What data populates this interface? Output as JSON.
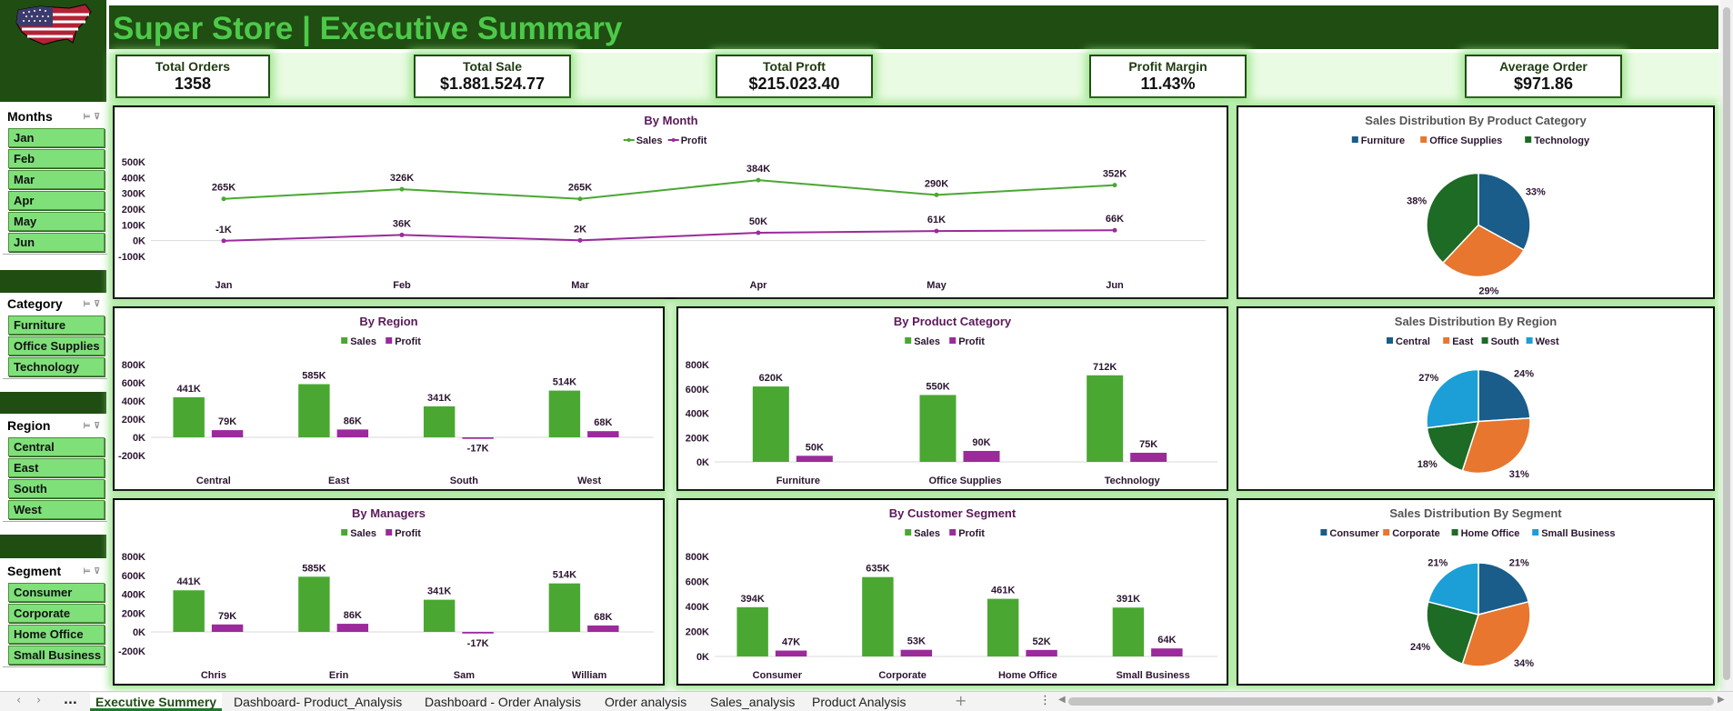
{
  "title": "Super Store | Executive Summary",
  "colors": {
    "sales": "#4aa832",
    "profit": "#9b2a9b",
    "dark_green": "#1f4d12",
    "furniture": "#1a5c8a",
    "office": "#e8762f",
    "technology": "#1d6b25",
    "small_business": "#1c9ed6"
  },
  "kpis": [
    {
      "label": "Total Orders",
      "value": "1358"
    },
    {
      "label": "Total Sale",
      "value": "$1.881.524.77"
    },
    {
      "label": "Total Proft",
      "value": "$215.023.40"
    },
    {
      "label": "Profit Margin",
      "value": "11.43%"
    },
    {
      "label": "Average Order",
      "value": "$971.86"
    }
  ],
  "slicers": {
    "months": {
      "title": "Months",
      "items": [
        "Jan",
        "Feb",
        "Mar",
        "Apr",
        "May",
        "Jun"
      ]
    },
    "category": {
      "title": "Category",
      "items": [
        "Furniture",
        "Office Supplies",
        "Technology"
      ]
    },
    "region": {
      "title": "Region",
      "items": [
        "Central",
        "East",
        "South",
        "West"
      ]
    },
    "segment": {
      "title": "Segment",
      "items": [
        "Consumer",
        "Corporate",
        "Home Office",
        "Small Business"
      ]
    }
  },
  "chart_data": [
    {
      "id": "by_month",
      "type": "line",
      "title": "By Month",
      "categories": [
        "Jan",
        "Feb",
        "Mar",
        "Apr",
        "May",
        "Jun"
      ],
      "series": [
        {
          "name": "Sales",
          "values": [
            265,
            326,
            265,
            384,
            290,
            352
          ],
          "labels": [
            "265K",
            "326K",
            "265K",
            "384K",
            "290K",
            "352K"
          ]
        },
        {
          "name": "Profit",
          "values": [
            -1,
            36,
            2,
            50,
            61,
            66
          ],
          "labels": [
            "-1K",
            "36K",
            "2K",
            "50K",
            "61K",
            "66K"
          ]
        }
      ],
      "yticks": [
        "500K",
        "400K",
        "300K",
        "200K",
        "100K",
        "0K",
        "-100K"
      ],
      "ylim": [
        -100,
        500
      ]
    },
    {
      "id": "by_region",
      "type": "bar",
      "title": "By Region",
      "categories": [
        "Central",
        "East",
        "South",
        "West"
      ],
      "series": [
        {
          "name": "Sales",
          "values": [
            441,
            585,
            341,
            514
          ],
          "labels": [
            "441K",
            "585K",
            "341K",
            "514K"
          ]
        },
        {
          "name": "Profit",
          "values": [
            79,
            86,
            -17,
            68
          ],
          "labels": [
            "79K",
            "86K",
            "-17K",
            "68K"
          ]
        }
      ],
      "yticks": [
        "800K",
        "600K",
        "400K",
        "200K",
        "0K",
        "-200K"
      ],
      "ylim": [
        -200,
        800
      ]
    },
    {
      "id": "by_product_category",
      "type": "bar",
      "title": "By Product Category",
      "categories": [
        "Furniture",
        "Office Supplies",
        "Technology"
      ],
      "series": [
        {
          "name": "Sales",
          "values": [
            620,
            550,
            712
          ],
          "labels": [
            "620K",
            "550K",
            "712K"
          ]
        },
        {
          "name": "Profit",
          "values": [
            50,
            90,
            75
          ],
          "labels": [
            "50K",
            "90K",
            "75K"
          ]
        }
      ],
      "yticks": [
        "800K",
        "600K",
        "400K",
        "200K",
        "0K"
      ],
      "ylim": [
        0,
        800
      ]
    },
    {
      "id": "by_managers",
      "type": "bar",
      "title": "By Managers",
      "categories": [
        "Chris",
        "Erin",
        "Sam",
        "William"
      ],
      "series": [
        {
          "name": "Sales",
          "values": [
            441,
            585,
            341,
            514
          ],
          "labels": [
            "441K",
            "585K",
            "341K",
            "514K"
          ]
        },
        {
          "name": "Profit",
          "values": [
            79,
            86,
            -17,
            68
          ],
          "labels": [
            "79K",
            "86K",
            "-17K",
            "68K"
          ]
        }
      ],
      "yticks": [
        "800K",
        "600K",
        "400K",
        "200K",
        "0K",
        "-200K"
      ],
      "ylim": [
        -200,
        800
      ]
    },
    {
      "id": "by_customer_segment",
      "type": "bar",
      "title": "By Customer Segment",
      "categories": [
        "Consumer",
        "Corporate",
        "Home Office",
        "Small Business"
      ],
      "series": [
        {
          "name": "Sales",
          "values": [
            394,
            635,
            461,
            391
          ],
          "labels": [
            "394K",
            "635K",
            "461K",
            "391K"
          ]
        },
        {
          "name": "Profit",
          "values": [
            47,
            53,
            52,
            64
          ],
          "labels": [
            "47K",
            "53K",
            "52K",
            "64K"
          ]
        }
      ],
      "yticks": [
        "800K",
        "600K",
        "400K",
        "200K",
        "0K"
      ],
      "ylim": [
        0,
        800
      ]
    },
    {
      "id": "dist_category",
      "type": "pie",
      "title": "Sales Distribution By Product Category",
      "categories": [
        "Furniture",
        "Office Supplies",
        "Technology"
      ],
      "values": [
        33,
        29,
        38
      ],
      "labels": [
        "33%",
        "29%",
        "38%"
      ]
    },
    {
      "id": "dist_region",
      "type": "pie",
      "title": "Sales Distribution By Region",
      "categories": [
        "Central",
        "East",
        "South",
        "West"
      ],
      "values": [
        24,
        31,
        18,
        27
      ],
      "labels": [
        "24%",
        "31%",
        "18%",
        "27%"
      ]
    },
    {
      "id": "dist_segment",
      "type": "pie",
      "title": "Sales Distribution By Segment",
      "categories": [
        "Consumer",
        "Corporate",
        "Home Office",
        "Small Business"
      ],
      "values": [
        21,
        34,
        24,
        21
      ],
      "labels": [
        "21%",
        "34%",
        "24%",
        "21%"
      ]
    }
  ],
  "sheet_tabs": [
    "Executive Summery",
    "Dashboard- Product_Analysis",
    "Dashboard - Order Analysis",
    "Order analysis",
    "Sales_analysis",
    "Product Analysis"
  ],
  "tab_controls": {
    "more": "...",
    "add": "+",
    "options": "⋮"
  }
}
